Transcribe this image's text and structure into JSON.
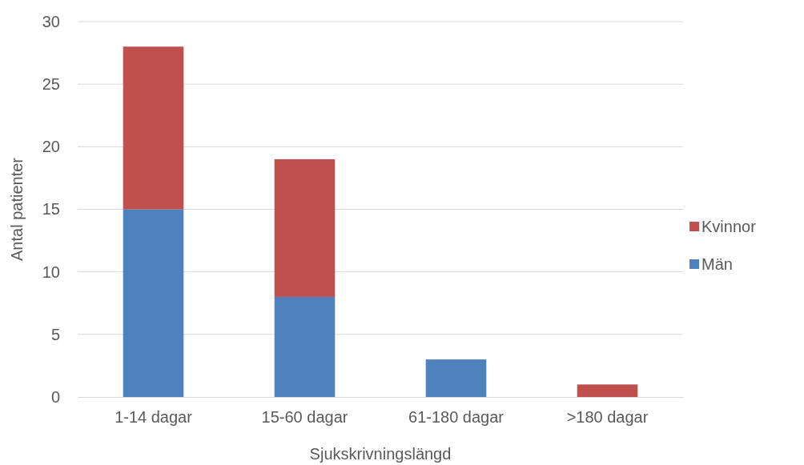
{
  "chart_data": {
    "type": "bar",
    "stacked": true,
    "xlabel": "Sjukskrivningslängd",
    "ylabel": "Antal patienter",
    "categories": [
      "1-14 dagar",
      "15-60 dagar",
      "61-180 dagar",
      ">180 dagar"
    ],
    "series": [
      {
        "name": "Män",
        "color": "#4f81bd",
        "values": [
          15,
          8,
          3,
          0
        ]
      },
      {
        "name": "Kvinnor",
        "color": "#c0504d",
        "values": [
          13,
          11,
          0,
          1
        ]
      }
    ],
    "ylim": [
      0,
      30
    ],
    "yticks": [
      0,
      5,
      10,
      15,
      20,
      25,
      30
    ],
    "grid": "y",
    "legend": "right"
  }
}
